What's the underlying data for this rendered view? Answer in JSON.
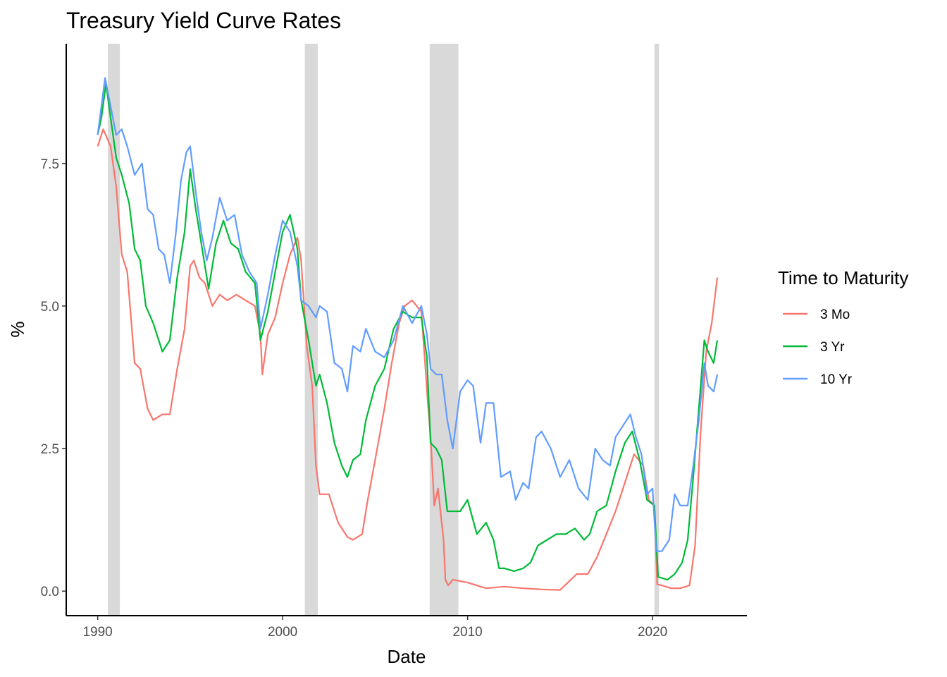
{
  "chart_data": {
    "type": "line",
    "title": "Treasury Yield Curve Rates",
    "xlabel": "Date",
    "ylabel": "%",
    "x_ticks": [
      1990,
      2000,
      2010,
      2020
    ],
    "y_ticks": [
      0.0,
      2.5,
      5.0,
      7.5
    ],
    "y_tick_labels": [
      "0.0",
      "2.5",
      "5.0",
      "7.5"
    ],
    "xlim": [
      1988.3,
      2025.1
    ],
    "ylim": [
      -0.43,
      9.6
    ],
    "grid": false,
    "legend": {
      "title": "Time to Maturity",
      "placement": "right"
    },
    "recessions": [
      {
        "start": 1990.55,
        "end": 1991.2
      },
      {
        "start": 2001.2,
        "end": 2001.9
      },
      {
        "start": 2007.95,
        "end": 2009.5
      },
      {
        "start": 2020.1,
        "end": 2020.35
      }
    ],
    "series": [
      {
        "name": "3 Mo",
        "color": "#F8766D",
        "x": [
          1990.0,
          1990.3,
          1990.7,
          1991.0,
          1991.3,
          1991.6,
          1992.0,
          1992.3,
          1992.7,
          1993.0,
          1993.5,
          1993.9,
          1994.3,
          1994.7,
          1995.0,
          1995.2,
          1995.5,
          1995.8,
          1996.2,
          1996.6,
          1997.0,
          1997.5,
          1998.0,
          1998.5,
          1998.8,
          1998.9,
          1999.2,
          1999.6,
          2000.0,
          2000.4,
          2000.8,
          2001.0,
          2001.3,
          2001.6,
          2001.8,
          2002.0,
          2002.5,
          2003.0,
          2003.5,
          2003.8,
          2004.3,
          2004.6,
          2005.0,
          2005.5,
          2005.9,
          2006.3,
          2006.6,
          2007.0,
          2007.5,
          2007.7,
          2007.85,
          2008.0,
          2008.2,
          2008.4,
          2008.7,
          2008.8,
          2008.95,
          2009.2,
          2010.0,
          2011.0,
          2012.0,
          2013.0,
          2014.0,
          2015.0,
          2015.9,
          2016.5,
          2017.0,
          2017.5,
          2018.0,
          2018.5,
          2019.0,
          2019.5,
          2019.8,
          2020.1,
          2020.25,
          2020.5,
          2021.0,
          2021.5,
          2022.0,
          2022.3,
          2022.6,
          2022.9,
          2023.2,
          2023.5
        ],
        "y": [
          7.8,
          8.1,
          7.8,
          7.1,
          5.9,
          5.6,
          4.0,
          3.9,
          3.2,
          3.0,
          3.1,
          3.1,
          3.9,
          4.6,
          5.7,
          5.8,
          5.5,
          5.4,
          5.0,
          5.2,
          5.1,
          5.2,
          5.1,
          5.0,
          4.5,
          3.8,
          4.5,
          4.8,
          5.4,
          5.9,
          6.2,
          5.8,
          4.3,
          3.6,
          2.2,
          1.7,
          1.7,
          1.2,
          0.95,
          0.9,
          1.0,
          1.6,
          2.3,
          3.2,
          4.0,
          4.7,
          5.0,
          5.1,
          4.9,
          4.0,
          3.3,
          2.7,
          1.5,
          1.8,
          0.9,
          0.2,
          0.1,
          0.2,
          0.15,
          0.05,
          0.08,
          0.05,
          0.03,
          0.02,
          0.3,
          0.3,
          0.6,
          1.0,
          1.4,
          1.9,
          2.4,
          2.2,
          1.6,
          1.5,
          0.12,
          0.1,
          0.05,
          0.05,
          0.1,
          0.8,
          2.8,
          4.2,
          4.7,
          5.5
        ]
      },
      {
        "name": "3 Yr",
        "color": "#00BA38",
        "x": [
          1990.0,
          1990.2,
          1990.45,
          1990.7,
          1991.0,
          1991.3,
          1991.7,
          1992.0,
          1992.3,
          1992.6,
          1993.0,
          1993.5,
          1993.9,
          1994.3,
          1994.7,
          1995.0,
          1995.3,
          1995.7,
          1996.0,
          1996.4,
          1996.8,
          1997.2,
          1997.6,
          1998.0,
          1998.5,
          1998.8,
          1999.2,
          1999.6,
          2000.0,
          2000.4,
          2000.8,
          2001.0,
          2001.4,
          2001.8,
          2002.0,
          2002.4,
          2002.8,
          2003.2,
          2003.5,
          2003.8,
          2004.2,
          2004.5,
          2005.0,
          2005.5,
          2006.0,
          2006.5,
          2007.0,
          2007.5,
          2007.8,
          2008.0,
          2008.3,
          2008.6,
          2008.9,
          2009.2,
          2009.6,
          2010.0,
          2010.5,
          2011.0,
          2011.4,
          2011.7,
          2012.0,
          2012.5,
          2013.0,
          2013.4,
          2013.8,
          2014.3,
          2014.8,
          2015.3,
          2015.8,
          2016.3,
          2016.6,
          2017.0,
          2017.5,
          2018.0,
          2018.5,
          2018.9,
          2019.3,
          2019.7,
          2020.1,
          2020.3,
          2020.8,
          2021.2,
          2021.6,
          2021.9,
          2022.2,
          2022.5,
          2022.8,
          2023.0,
          2023.3,
          2023.5
        ],
        "y": [
          8.0,
          8.3,
          8.9,
          8.3,
          7.6,
          7.3,
          6.8,
          6.0,
          5.8,
          5.0,
          4.7,
          4.2,
          4.4,
          5.5,
          6.3,
          7.4,
          6.7,
          5.9,
          5.3,
          6.1,
          6.5,
          6.1,
          6.0,
          5.6,
          5.4,
          4.4,
          4.9,
          5.6,
          6.3,
          6.6,
          6.0,
          5.1,
          4.4,
          3.6,
          3.8,
          3.3,
          2.6,
          2.2,
          2.0,
          2.3,
          2.4,
          3.0,
          3.6,
          3.9,
          4.6,
          4.9,
          4.8,
          4.8,
          4.1,
          2.6,
          2.5,
          2.3,
          1.4,
          1.4,
          1.4,
          1.6,
          1.0,
          1.2,
          0.9,
          0.4,
          0.4,
          0.35,
          0.4,
          0.5,
          0.8,
          0.9,
          1.0,
          1.0,
          1.1,
          0.9,
          1.0,
          1.4,
          1.5,
          2.1,
          2.6,
          2.8,
          2.3,
          1.6,
          1.5,
          0.25,
          0.2,
          0.3,
          0.5,
          0.9,
          2.0,
          3.2,
          4.4,
          4.2,
          4.0,
          4.4
        ]
      },
      {
        "name": "10 Yr",
        "color": "#619CFF",
        "x": [
          1990.0,
          1990.2,
          1990.4,
          1990.7,
          1991.0,
          1991.3,
          1991.6,
          1992.0,
          1992.4,
          1992.7,
          1993.0,
          1993.3,
          1993.6,
          1993.9,
          1994.2,
          1994.5,
          1994.8,
          1995.0,
          1995.3,
          1995.6,
          1995.9,
          1996.2,
          1996.6,
          1997.0,
          1997.4,
          1997.8,
          1998.2,
          1998.6,
          1998.8,
          1999.2,
          1999.6,
          2000.0,
          2000.4,
          2000.8,
          2001.0,
          2001.4,
          2001.8,
          2002.0,
          2002.4,
          2002.8,
          2003.2,
          2003.5,
          2003.8,
          2004.2,
          2004.5,
          2005.0,
          2005.5,
          2006.0,
          2006.5,
          2007.0,
          2007.5,
          2007.8,
          2008.0,
          2008.3,
          2008.6,
          2008.9,
          2009.2,
          2009.6,
          2010.0,
          2010.3,
          2010.7,
          2011.0,
          2011.4,
          2011.8,
          2012.3,
          2012.6,
          2013.0,
          2013.3,
          2013.7,
          2014.0,
          2014.5,
          2015.0,
          2015.5,
          2016.0,
          2016.5,
          2016.9,
          2017.3,
          2017.7,
          2018.0,
          2018.4,
          2018.8,
          2019.1,
          2019.4,
          2019.7,
          2020.0,
          2020.2,
          2020.5,
          2020.9,
          2021.2,
          2021.5,
          2021.9,
          2022.2,
          2022.5,
          2022.8,
          2023.0,
          2023.3,
          2023.5
        ],
        "y": [
          8.0,
          8.5,
          9.0,
          8.5,
          8.0,
          8.1,
          7.8,
          7.3,
          7.5,
          6.7,
          6.6,
          6.0,
          5.9,
          5.4,
          6.2,
          7.2,
          7.7,
          7.8,
          7.0,
          6.3,
          5.8,
          6.2,
          6.9,
          6.5,
          6.6,
          5.9,
          5.6,
          5.4,
          4.6,
          5.2,
          5.9,
          6.5,
          6.3,
          5.7,
          5.1,
          5.0,
          4.8,
          5.0,
          4.9,
          4.0,
          3.9,
          3.5,
          4.3,
          4.2,
          4.6,
          4.2,
          4.1,
          4.4,
          5.0,
          4.7,
          5.0,
          4.5,
          3.9,
          3.8,
          3.8,
          3.0,
          2.5,
          3.5,
          3.7,
          3.6,
          2.6,
          3.3,
          3.3,
          2.0,
          2.1,
          1.6,
          1.9,
          1.8,
          2.7,
          2.8,
          2.5,
          2.0,
          2.3,
          1.8,
          1.6,
          2.5,
          2.3,
          2.2,
          2.7,
          2.9,
          3.1,
          2.7,
          2.4,
          1.7,
          1.8,
          0.7,
          0.7,
          0.9,
          1.7,
          1.5,
          1.5,
          2.2,
          3.0,
          4.0,
          3.6,
          3.5,
          3.8
        ]
      }
    ]
  }
}
